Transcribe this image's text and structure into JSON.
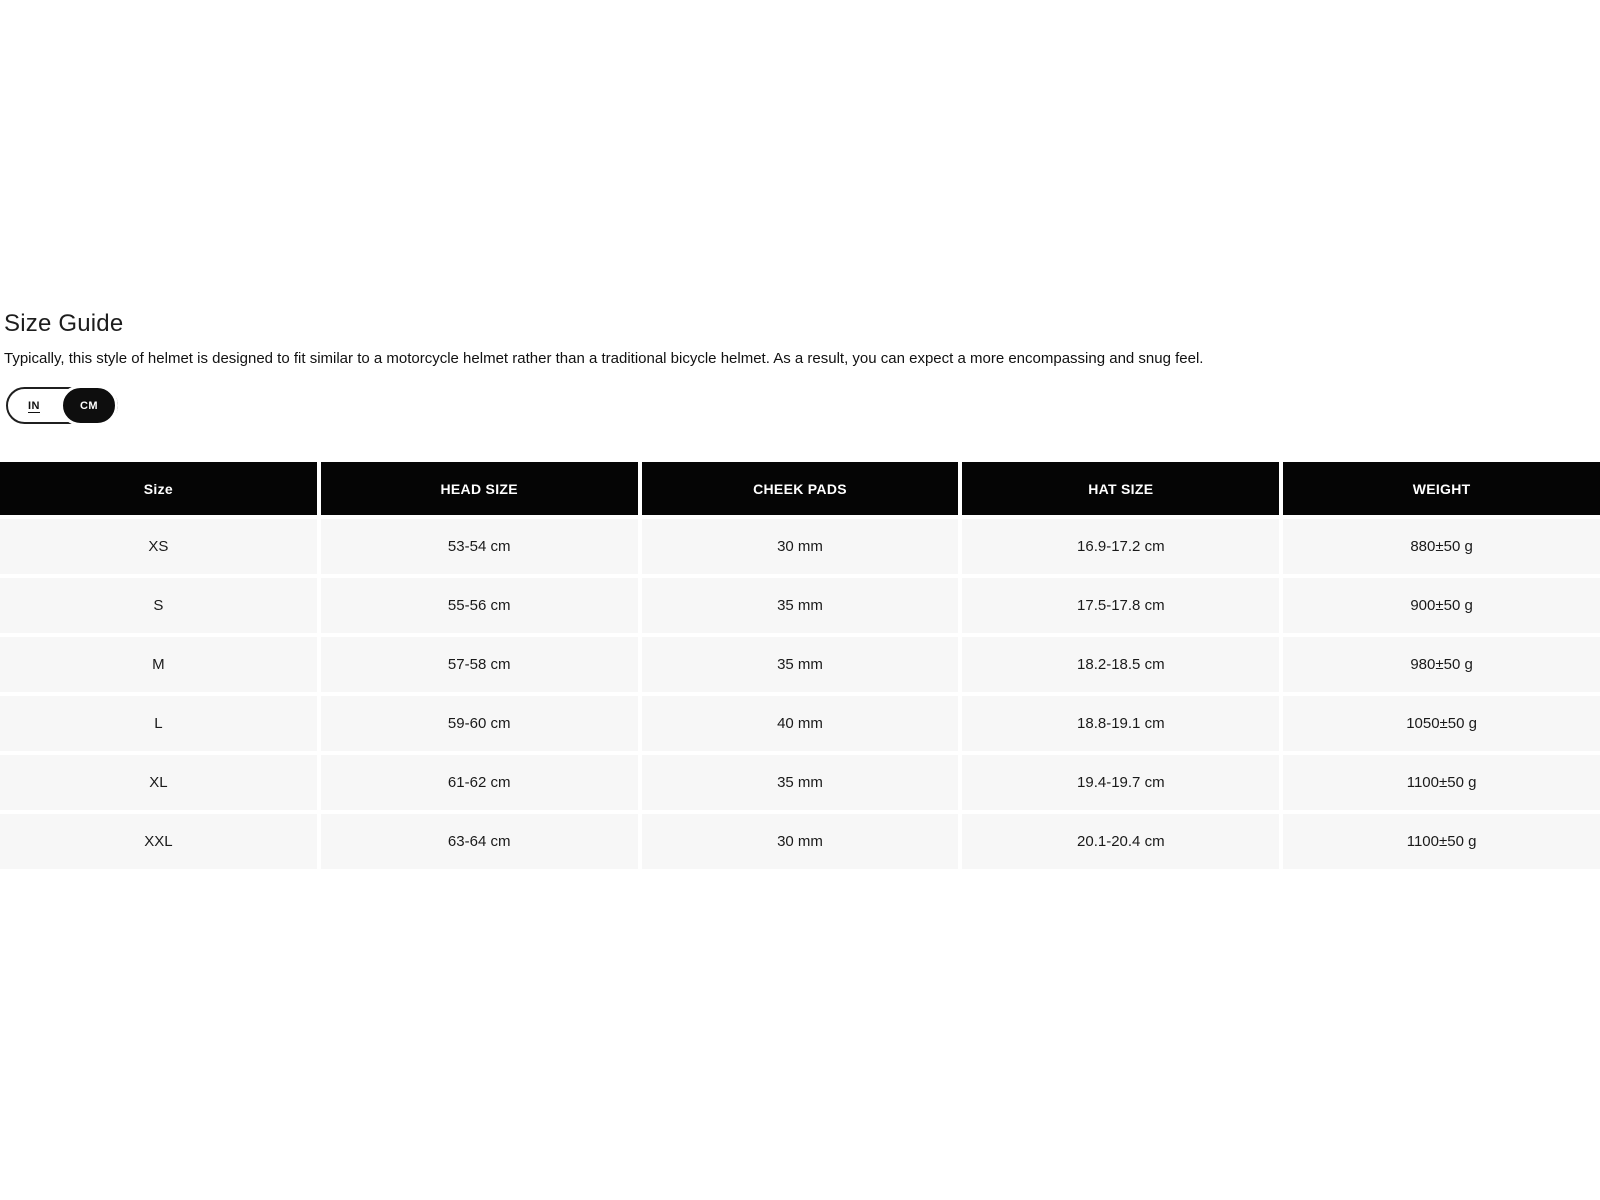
{
  "page": {
    "title": "Size Guide",
    "description": "Typically, this style of helmet is designed to fit similar to a motorcycle helmet rather than a traditional bicycle helmet. As a result, you can expect a more encompassing and snug feel."
  },
  "unit_toggle": {
    "options": [
      {
        "label": "IN",
        "selected": false
      },
      {
        "label": "CM",
        "selected": true
      }
    ]
  },
  "table": {
    "columns": [
      "Size",
      "HEAD SIZE",
      "CHEEK PADS",
      "HAT SIZE",
      "WEIGHT"
    ],
    "rows": [
      [
        "XS",
        "53-54 cm",
        "30 mm",
        "16.9-17.2 cm",
        "880±50 g"
      ],
      [
        "S",
        "55-56 cm",
        "35 mm",
        "17.5-17.8 cm",
        "900±50 g"
      ],
      [
        "M",
        "57-58 cm",
        "35 mm",
        "18.2-18.5 cm",
        "980±50 g"
      ],
      [
        "L",
        "59-60 cm",
        "40 mm",
        "18.8-19.1 cm",
        "1050±50 g"
      ],
      [
        "XL",
        "61-62 cm",
        "35 mm",
        "19.4-19.7 cm",
        "1100±50 g"
      ],
      [
        "XXL",
        "63-64 cm",
        "30 mm",
        "20.1-20.4 cm",
        "1100±50 g"
      ]
    ]
  },
  "colors": {
    "header_bg": "#050505",
    "header_text": "#ffffff",
    "row_bg": "#f7f7f7",
    "row_text": "#1a1a1a",
    "toggle_selected_bg": "#0e0e0e",
    "toggle_border": "#1f1f1f",
    "page_bg": "#ffffff"
  }
}
